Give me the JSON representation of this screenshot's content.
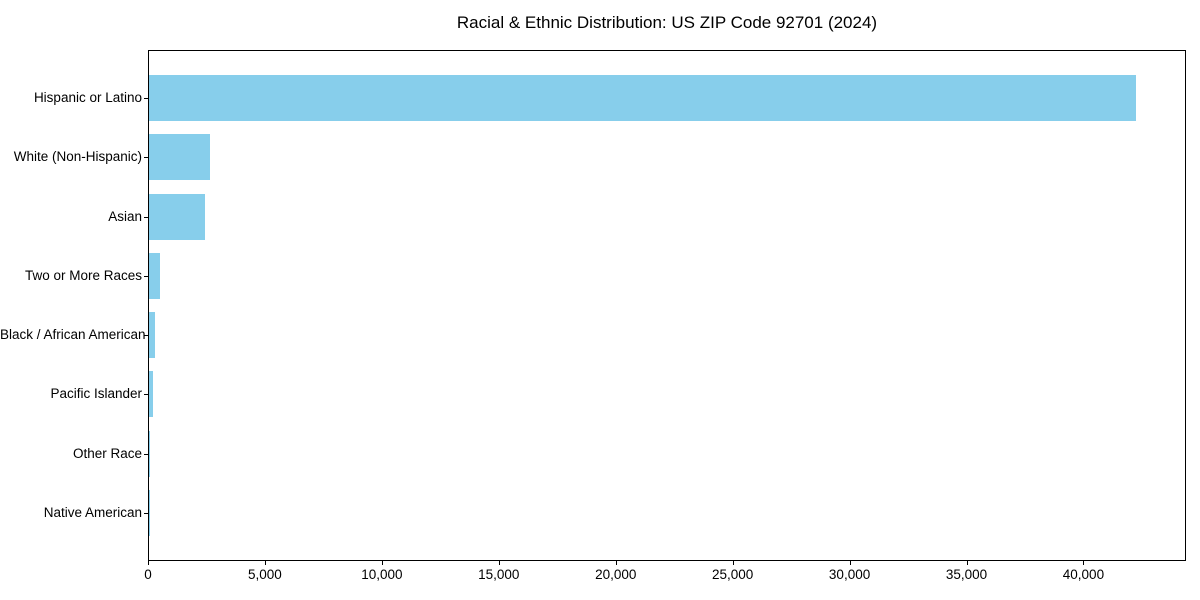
{
  "title": "Racial & Ethnic Distribution: US ZIP Code 92701 (2024)",
  "colors": {
    "bar": "#87CEEB",
    "axis": "#000000",
    "text": "#000000",
    "background": "#FFFFFF"
  },
  "chart_data": {
    "type": "bar",
    "orientation": "horizontal",
    "title": "Racial & Ethnic Distribution: US ZIP Code 92701 (2024)",
    "categories": [
      "Hispanic or Latino",
      "White (Non-Hispanic)",
      "Asian",
      "Two or More Races",
      "Black / African American",
      "Pacific Islander",
      "Other Race",
      "Native American"
    ],
    "values": [
      42200,
      2600,
      2400,
      460,
      240,
      150,
      40,
      25
    ],
    "xlabel": "",
    "ylabel": "",
    "xlim": [
      0,
      44300
    ],
    "xticks": [
      0,
      5000,
      10000,
      15000,
      20000,
      25000,
      30000,
      35000,
      40000
    ],
    "xtick_labels": [
      "0",
      "5,000",
      "10,000",
      "15,000",
      "20,000",
      "25,000",
      "30,000",
      "35,000",
      "40,000"
    ],
    "bar_color": "#87CEEB",
    "grid": false,
    "legend": null
  }
}
